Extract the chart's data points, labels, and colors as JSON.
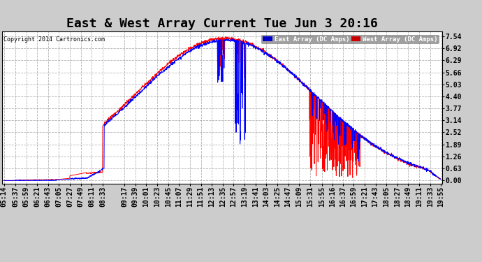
{
  "title": "East & West Array Current Tue Jun 3 20:16",
  "copyright": "Copyright 2014 Cartronics.com",
  "legend_east": "East Array (DC Amps)",
  "legend_west": "West Array (DC Amps)",
  "east_color": "#0000FF",
  "west_color": "#FF0000",
  "legend_east_bg": "#0000CC",
  "legend_west_bg": "#CC0000",
  "plot_bg": "#FFFFFF",
  "fig_bg": "#CCCCCC",
  "yticks": [
    0.0,
    0.63,
    1.26,
    1.89,
    2.52,
    3.14,
    3.77,
    4.4,
    5.03,
    5.66,
    6.29,
    6.92,
    7.54
  ],
  "ylim": [
    -0.15,
    7.8
  ],
  "title_fontsize": 13,
  "tick_fontsize": 7,
  "time_labels": [
    "05:14",
    "05:37",
    "05:59",
    "06:21",
    "06:43",
    "07:05",
    "07:27",
    "07:49",
    "08:11",
    "08:33",
    "09:17",
    "09:39",
    "10:01",
    "10:23",
    "10:45",
    "11:07",
    "11:29",
    "11:51",
    "12:13",
    "12:35",
    "12:57",
    "13:19",
    "13:41",
    "14:03",
    "14:25",
    "14:47",
    "15:09",
    "15:31",
    "15:55",
    "16:16",
    "16:37",
    "16:59",
    "17:21",
    "17:43",
    "18:05",
    "18:27",
    "18:49",
    "19:11",
    "19:33",
    "19:55"
  ]
}
